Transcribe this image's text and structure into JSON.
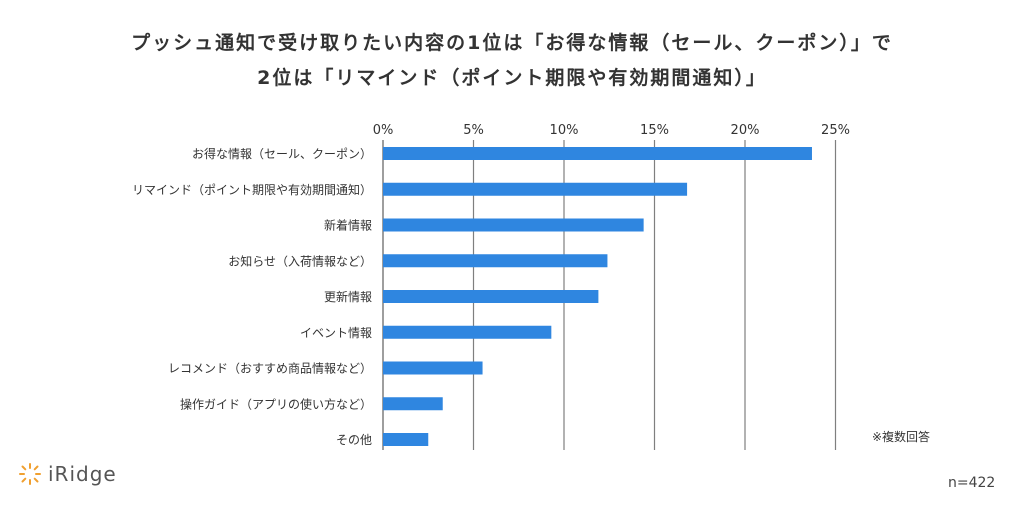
{
  "title_line1": "プッシュ通知で受け取りたい内容の1位は「お得な情報（セール、クーポン）」で",
  "title_line2": "2位は「リマインド（ポイント期限や有効期間通知）」",
  "note": "※複数回答",
  "sample": "n=422",
  "logo_text": "iRidge",
  "colors": {
    "bar": "#2f86e0",
    "grid": "#7f7f7f",
    "logo_accent": "#f0a030"
  },
  "chart_data": {
    "type": "bar",
    "orientation": "horizontal",
    "categories": [
      "お得な情報（セール、クーポン）",
      "リマインド（ポイント期限や有効期間通知）",
      "新着情報",
      "お知らせ（入荷情報など）",
      "更新情報",
      "イベント情報",
      "レコメンド（おすすめ商品情報など）",
      "操作ガイド（アプリの使い方など）",
      "その他"
    ],
    "values": [
      23.7,
      16.8,
      14.4,
      12.4,
      11.9,
      9.3,
      5.5,
      3.3,
      2.5
    ],
    "xlim": [
      0,
      25
    ],
    "ticks": [
      0,
      5,
      10,
      15,
      20,
      25
    ],
    "tick_labels": [
      "0%",
      "5%",
      "10%",
      "15%",
      "20%",
      "25%"
    ],
    "grid": true,
    "xlabel": "",
    "ylabel": ""
  }
}
